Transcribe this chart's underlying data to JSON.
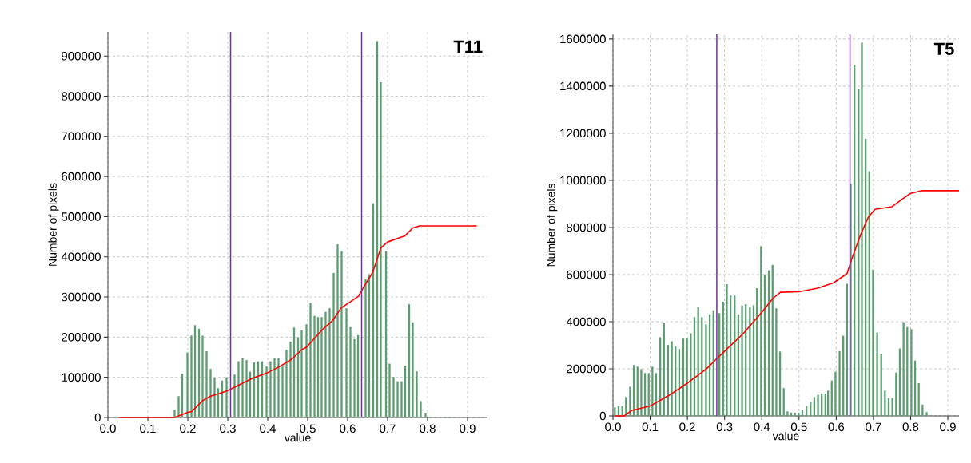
{
  "chart_data": [
    {
      "type": "bar",
      "xlabel": "value",
      "ylabel": "Number of pixels",
      "annotations": [
        "T11"
      ],
      "grid": true,
      "xlim": [
        0,
        0.95
      ],
      "ylim": [
        0,
        960000
      ],
      "xticks": [
        {
          "value": 0,
          "label": "0.0"
        },
        0.1,
        0.2,
        0.3,
        0.4,
        0.5,
        0.6,
        0.7,
        0.8,
        0.9
      ],
      "yticks": [
        0,
        100000,
        200000,
        300000,
        400000,
        500000,
        600000,
        700000,
        800000,
        900000
      ],
      "ref_lines": [
        {
          "axis": "x",
          "value": 0.307,
          "color": "#7030a0"
        },
        {
          "axis": "x",
          "value": 0.635,
          "color": "#7030a0"
        }
      ],
      "series": [
        {
          "color": "#5a9e6f",
          "x": [
            0.167,
            0.177,
            0.186,
            0.199,
            0.209,
            0.218,
            0.228,
            0.237,
            0.247,
            0.257,
            0.267,
            0.276,
            0.286,
            0.297,
            0.307,
            0.317,
            0.327,
            0.337,
            0.347,
            0.356,
            0.366,
            0.376,
            0.386,
            0.397,
            0.407,
            0.417,
            0.427,
            0.437,
            0.447,
            0.457,
            0.466,
            0.476,
            0.485,
            0.497,
            0.507,
            0.517,
            0.526,
            0.535,
            0.545,
            0.555,
            0.565,
            0.575,
            0.585,
            0.597,
            0.607,
            0.617,
            0.626,
            0.635,
            0.645,
            0.654,
            0.664,
            0.674,
            0.683,
            0.696,
            0.705,
            0.715,
            0.725,
            0.735,
            0.744,
            0.754,
            0.763,
            0.773,
            0.783,
            0.795,
            0.805,
            0.845,
            0.855
          ],
          "values": [
            19000,
            53000,
            109000,
            162000,
            204000,
            230000,
            221000,
            204000,
            165000,
            121000,
            99000,
            73000,
            92000,
            100000,
            null,
            107000,
            140000,
            147000,
            143000,
            114000,
            137000,
            140000,
            140000,
            127000,
            140000,
            148000,
            147000,
            127000,
            169000,
            189000,
            224000,
            200000,
            217000,
            232000,
            285000,
            253000,
            250000,
            250000,
            263000,
            272000,
            360000,
            431000,
            414000,
            272000,
            225000,
            195000,
            205000,
            null,
            344000,
            357000,
            533000,
            937000,
            835000,
            414000,
            134000,
            101000,
            90000,
            90000,
            129000,
            282000,
            237000,
            115000,
            41000,
            12000,
            2000,
            2000,
            2000
          ]
        },
        {
          "type": "line",
          "color": "#ff0000",
          "x": [
            0.028,
            0.167,
            0.2,
            0.21,
            0.237,
            0.257,
            0.28,
            0.3,
            0.33,
            0.36,
            0.4,
            0.43,
            0.46,
            0.485,
            0.497,
            0.537,
            0.563,
            0.583,
            0.627,
            0.643,
            0.663,
            0.683,
            0.7,
            0.743,
            0.763,
            0.78,
            0.923
          ],
          "values": [
            0,
            0,
            13000,
            15000,
            42000,
            53000,
            60000,
            67000,
            82000,
            97000,
            112000,
            127000,
            145000,
            169000,
            175000,
            219000,
            242000,
            272000,
            302000,
            329000,
            362000,
            422000,
            437000,
            452000,
            472000,
            477000,
            477000
          ]
        }
      ]
    },
    {
      "type": "bar",
      "xlabel": "value",
      "ylabel": "Number of pixels",
      "annotations": [
        "T5"
      ],
      "grid": true,
      "xlim": [
        0,
        0.93
      ],
      "ylim": [
        0,
        1620000
      ],
      "xticks": [
        {
          "value": 0,
          "label": "0.0"
        },
        0.1,
        0.2,
        0.3,
        0.4,
        0.5,
        0.6,
        0.7,
        0.8,
        0.9
      ],
      "yticks": [
        0,
        200000,
        400000,
        600000,
        800000,
        1000000,
        1200000,
        1400000,
        1600000
      ],
      "ref_lines": [
        {
          "axis": "x",
          "value": 0.279,
          "color": "#7030a0"
        },
        {
          "axis": "x",
          "value": 0.637,
          "color": "#7030a0"
        }
      ],
      "series": [
        {
          "color": "#5a9e6f",
          "x": [
            0.005,
            0.015,
            0.025,
            0.035,
            0.046,
            0.056,
            0.066,
            0.076,
            0.086,
            0.096,
            0.106,
            0.116,
            0.127,
            0.137,
            0.148,
            0.158,
            0.168,
            0.178,
            0.189,
            0.199,
            0.209,
            0.219,
            0.229,
            0.239,
            0.25,
            0.26,
            0.27,
            0.286,
            0.296,
            0.306,
            0.316,
            0.327,
            0.337,
            0.347,
            0.357,
            0.368,
            0.378,
            0.387,
            0.398,
            0.408,
            0.419,
            0.429,
            0.439,
            0.449,
            0.459,
            0.469,
            0.479,
            0.489,
            0.499,
            0.509,
            0.52,
            0.531,
            0.541,
            0.551,
            0.561,
            0.571,
            0.578,
            0.588,
            0.598,
            0.609,
            0.619,
            0.629,
            0.639,
            0.649,
            0.66,
            0.669,
            0.679,
            0.689,
            0.699,
            0.71,
            0.721,
            0.731,
            0.741,
            0.751,
            0.761,
            0.771,
            0.781,
            0.791,
            0.802,
            0.812,
            0.822,
            0.832,
            0.843
          ],
          "values": [
            36000,
            42000,
            42000,
            80000,
            124000,
            216000,
            209000,
            199000,
            182000,
            182000,
            209000,
            182000,
            334000,
            393000,
            301000,
            317000,
            295000,
            284000,
            328000,
            328000,
            351000,
            419000,
            462000,
            419000,
            389000,
            431000,
            448000,
            436000,
            485000,
            559000,
            511000,
            511000,
            431000,
            468000,
            474000,
            462000,
            470000,
            542000,
            720000,
            601000,
            618000,
            641000,
            457000,
            273000,
            118000,
            19000,
            14000,
            14000,
            14000,
            27000,
            42000,
            59000,
            80000,
            90000,
            95000,
            95000,
            107000,
            150000,
            187000,
            275000,
            340000,
            561000,
            985000,
            1488000,
            1386000,
            1585000,
            1176000,
            1039000,
            621000,
            354000,
            264000,
            107000,
            76000,
            76000,
            184000,
            286000,
            398000,
            377000,
            368000,
            235000,
            139000,
            48000,
            16000
          ]
        },
        {
          "type": "line",
          "color": "#ff0000",
          "x": [
            0.005,
            0.03,
            0.05,
            0.1,
            0.15,
            0.2,
            0.25,
            0.279,
            0.3,
            0.35,
            0.4,
            0.43,
            0.45,
            0.5,
            0.55,
            0.593,
            0.629,
            0.643,
            0.664,
            0.686,
            0.704,
            0.75,
            0.771,
            0.8,
            0.829,
            0.93
          ],
          "values": [
            0,
            0,
            23000,
            42000,
            87000,
            139000,
            198000,
            243000,
            275000,
            349000,
            440000,
            499000,
            525000,
            527000,
            542000,
            565000,
            604000,
            672000,
            763000,
            843000,
            877000,
            888000,
            913000,
            945000,
            956000,
            956000
          ]
        }
      ]
    }
  ]
}
